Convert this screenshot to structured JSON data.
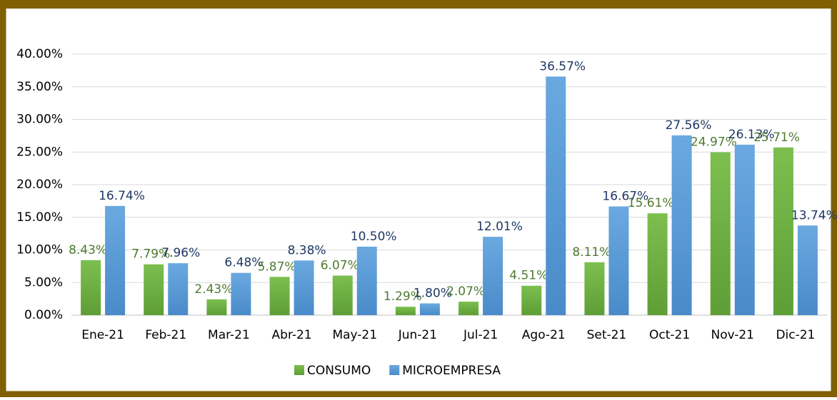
{
  "chart_data": {
    "type": "bar",
    "categories": [
      "Ene-21",
      "Feb-21",
      "Mar-21",
      "Abr-21",
      "May-21",
      "Jun-21",
      "Jul-21",
      "Ago-21",
      "Set-21",
      "Oct-21",
      "Nov-21",
      "Dic-21"
    ],
    "series": [
      {
        "name": "CONSUMO",
        "color": "#70ad47",
        "values": [
          8.43,
          7.79,
          2.43,
          5.87,
          6.07,
          1.29,
          2.07,
          4.51,
          8.11,
          15.61,
          24.97,
          25.71
        ],
        "value_labels": [
          "8.43%",
          "7.79%",
          "2.43%",
          "5.87%",
          "6.07%",
          "1.29%",
          "2.07%",
          "4.51%",
          "8.11%",
          "15.61%",
          "24.97%",
          "25.71%"
        ]
      },
      {
        "name": "MICROEMPRESA",
        "color": "#5b9bd5",
        "values": [
          16.74,
          7.96,
          6.48,
          8.38,
          10.5,
          1.8,
          12.01,
          36.57,
          16.67,
          27.56,
          26.13,
          13.74
        ],
        "value_labels": [
          "16.74%",
          "7.96%",
          "6.48%",
          "8.38%",
          "10.50%",
          "1.80%",
          "12.01%",
          "36.57%",
          "16.67%",
          "27.56%",
          "26.13%",
          "13.74%"
        ]
      }
    ],
    "ylim": [
      0,
      40
    ],
    "yticks": [
      {
        "value": 0,
        "label": "0.00%"
      },
      {
        "value": 5,
        "label": "5.00%"
      },
      {
        "value": 10,
        "label": "10.00%"
      },
      {
        "value": 15,
        "label": "15.00%"
      },
      {
        "value": 20,
        "label": "20.00%"
      },
      {
        "value": 25,
        "label": "25.00%"
      },
      {
        "value": 30,
        "label": "30.00%"
      },
      {
        "value": 35,
        "label": "35.00%"
      },
      {
        "value": 40,
        "label": "40.00%"
      }
    ],
    "grid": true
  }
}
